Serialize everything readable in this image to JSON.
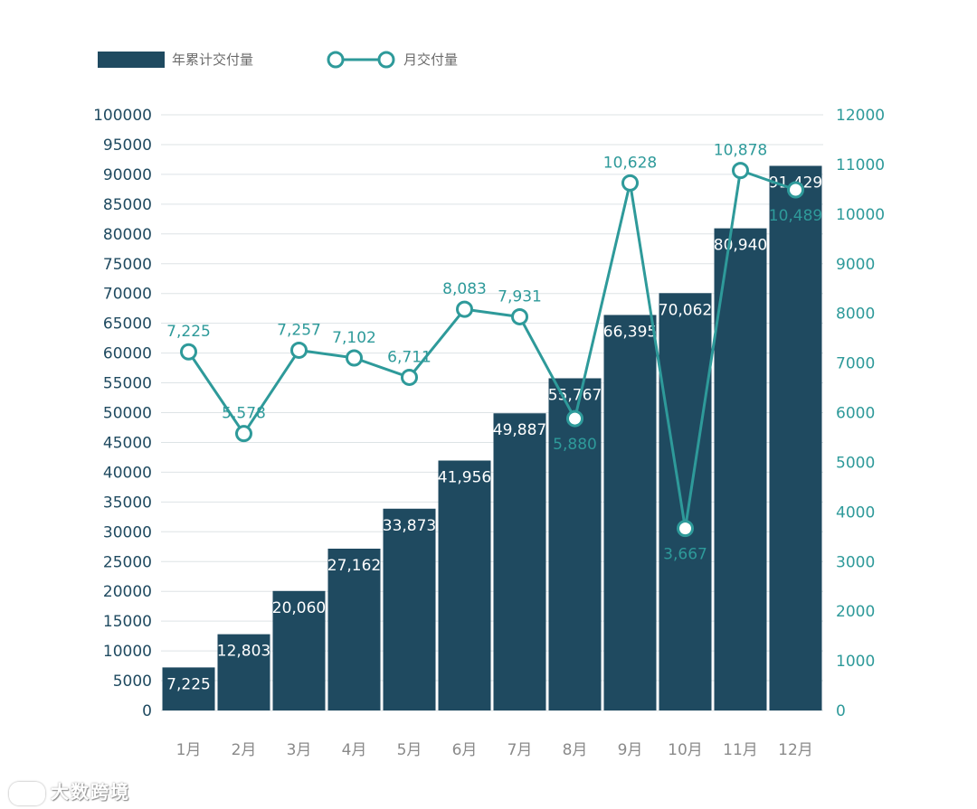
{
  "chart_data": {
    "type": "bar",
    "categories": [
      "1月",
      "2月",
      "3月",
      "4月",
      "5月",
      "6月",
      "7月",
      "8月",
      "9月",
      "10月",
      "11月",
      "12月"
    ],
    "series": [
      {
        "name": "年累计交付量",
        "kind": "bar",
        "axis": "left",
        "color": "#1f4a60",
        "values": [
          7225,
          12803,
          20060,
          27162,
          33873,
          41956,
          49887,
          55767,
          66395,
          70062,
          80940,
          91429
        ],
        "labels": [
          "7,225",
          "12,803",
          "20,060",
          "27,162",
          "33,873",
          "41,956",
          "49,887",
          "55,767",
          "66,395",
          "70,062",
          "80,940",
          "91,429"
        ]
      },
      {
        "name": "月交付量",
        "kind": "line",
        "axis": "right",
        "color": "#2e9a9a",
        "values": [
          7225,
          5578,
          7257,
          7102,
          6711,
          8083,
          7931,
          5880,
          10628,
          3667,
          10878,
          10489
        ],
        "labels": [
          "7,225",
          "5,578",
          "7,257",
          "7,102",
          "6,711",
          "8,083",
          "7,931",
          "5,880",
          "10,628",
          "3,667",
          "10,878",
          "10,489"
        ]
      }
    ],
    "y_left": {
      "ylim": [
        0,
        100000
      ],
      "ticks": [
        "0",
        "5000",
        "10000",
        "15000",
        "20000",
        "25000",
        "30000",
        "35000",
        "40000",
        "45000",
        "50000",
        "55000",
        "60000",
        "65000",
        "70000",
        "75000",
        "80000",
        "85000",
        "90000",
        "95000",
        "100000"
      ],
      "tick_values": [
        0,
        5000,
        10000,
        15000,
        20000,
        25000,
        30000,
        35000,
        40000,
        45000,
        50000,
        55000,
        60000,
        65000,
        70000,
        75000,
        80000,
        85000,
        90000,
        95000,
        100000
      ],
      "color": "#1f4a60"
    },
    "y_right": {
      "ylim": [
        0,
        12000
      ],
      "ticks": [
        "0",
        "1000",
        "2000",
        "3000",
        "4000",
        "5000",
        "6000",
        "7000",
        "8000",
        "9000",
        "10000",
        "11000",
        "12000"
      ],
      "tick_values": [
        0,
        1000,
        2000,
        3000,
        4000,
        5000,
        6000,
        7000,
        8000,
        9000,
        10000,
        11000,
        12000
      ],
      "color": "#2e9a9a"
    },
    "grid": true,
    "legend": "top-left",
    "xlabel": "",
    "ylabel": ""
  },
  "watermark": {
    "text": "大数跨境"
  }
}
